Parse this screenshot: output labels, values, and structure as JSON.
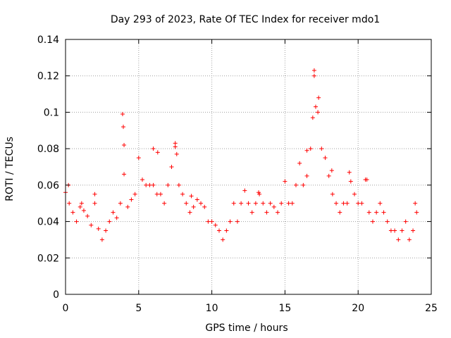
{
  "chart_data": {
    "type": "scatter",
    "title": "Day 293 of 2023, Rate Of TEC Index for receiver mdo1",
    "xlabel": "GPS time / hours",
    "ylabel": "ROTI / TECUs",
    "xlim": [
      0,
      25
    ],
    "ylim": [
      0,
      0.14
    ],
    "x_ticks": [
      "0",
      "5",
      "10",
      "15",
      "20",
      "25"
    ],
    "y_ticks": [
      "0",
      "0.02",
      "0.04",
      "0.06",
      "0.08",
      "0.1",
      "0.12",
      "0.14"
    ],
    "grid": true,
    "marker": "+",
    "color": "#ff0000",
    "series": [
      {
        "x": [
          0.0,
          0.25,
          0.5,
          0.75,
          1.0,
          1.25,
          1.5,
          1.75,
          2.0,
          2.25,
          2.5,
          2.75,
          3.0,
          3.25,
          3.5,
          3.75,
          4.0,
          4.25,
          4.5,
          4.75,
          5.0,
          5.25,
          5.5,
          5.75,
          6.0,
          6.25,
          6.5,
          6.75,
          7.0,
          7.25,
          7.5,
          7.75,
          8.0,
          8.25,
          8.5,
          8.75,
          9.0,
          9.25,
          9.5,
          9.75,
          10.0,
          10.25,
          10.5,
          10.75,
          11.0,
          11.25,
          11.5,
          11.75,
          12.0,
          12.25,
          12.5,
          12.75,
          13.0,
          13.25,
          13.5,
          13.75,
          14.0,
          14.25,
          14.5,
          14.75,
          15.0,
          15.25,
          15.5,
          15.75,
          16.0,
          16.25,
          16.5,
          16.75,
          17.0,
          17.25,
          17.5,
          17.75,
          18.0,
          18.25,
          18.5,
          18.75,
          19.0,
          19.25,
          19.5,
          19.75,
          20.0,
          20.25,
          20.5,
          20.75,
          21.0,
          21.25,
          21.5,
          21.75,
          22.0,
          22.25,
          22.5,
          22.75,
          23.0,
          23.25,
          23.5,
          23.75,
          24.0,
          3.9,
          3.95,
          4.0,
          7.5,
          7.6,
          16.9,
          17.0,
          17.1,
          17.3,
          16.5,
          18.2,
          19.4,
          0.2,
          1.1,
          2.0,
          6.0,
          6.3,
          8.6,
          13.2,
          20.6,
          23.9
        ],
        "y": [
          0.056,
          0.05,
          0.045,
          0.04,
          0.048,
          0.046,
          0.043,
          0.038,
          0.05,
          0.036,
          0.03,
          0.035,
          0.04,
          0.045,
          0.042,
          0.05,
          0.066,
          0.048,
          0.052,
          0.055,
          0.075,
          0.063,
          0.06,
          0.06,
          0.06,
          0.055,
          0.055,
          0.05,
          0.06,
          0.07,
          0.083,
          0.06,
          0.055,
          0.05,
          0.045,
          0.048,
          0.052,
          0.05,
          0.048,
          0.04,
          0.04,
          0.038,
          0.035,
          0.03,
          0.035,
          0.04,
          0.05,
          0.04,
          0.05,
          0.057,
          0.05,
          0.045,
          0.05,
          0.055,
          0.05,
          0.045,
          0.05,
          0.048,
          0.045,
          0.05,
          0.062,
          0.05,
          0.05,
          0.06,
          0.072,
          0.06,
          0.065,
          0.08,
          0.12,
          0.1,
          0.08,
          0.075,
          0.065,
          0.055,
          0.05,
          0.045,
          0.05,
          0.05,
          0.062,
          0.055,
          0.05,
          0.05,
          0.063,
          0.045,
          0.04,
          0.045,
          0.05,
          0.045,
          0.04,
          0.035,
          0.035,
          0.03,
          0.035,
          0.04,
          0.03,
          0.035,
          0.045,
          0.099,
          0.092,
          0.082,
          0.081,
          0.077,
          0.097,
          0.123,
          0.103,
          0.108,
          0.079,
          0.068,
          0.067,
          0.06,
          0.05,
          0.055,
          0.08,
          0.078,
          0.054,
          0.056,
          0.063,
          0.05
        ]
      }
    ]
  }
}
